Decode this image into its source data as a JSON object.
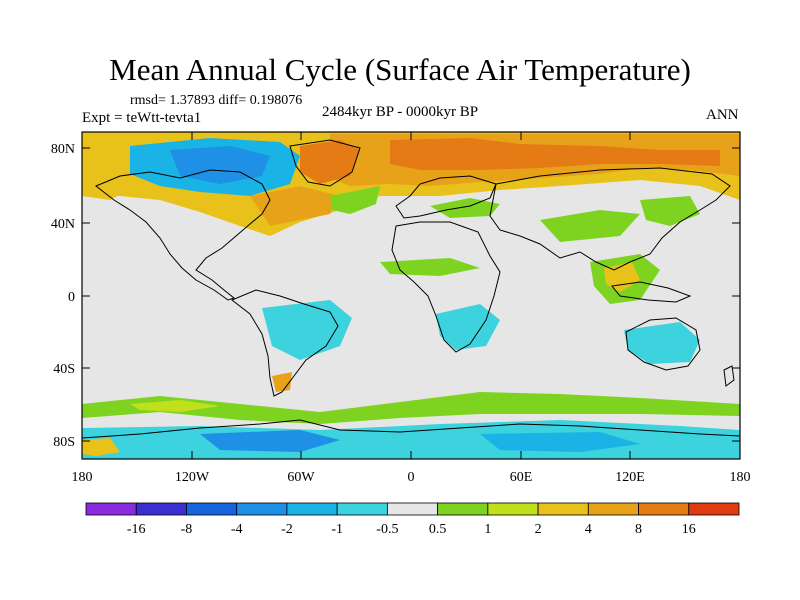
{
  "title": "Mean Annual Cycle (Surface Air Temperature)",
  "stats": "rmsd= 1.37893 diff= 0.198076",
  "experiment": "Expt = teWtt-tevta1",
  "period": "2484kyr BP - 0000kyr BP",
  "season": "ANN",
  "lat_ticks": [
    "80N",
    "40N",
    "0",
    "40S",
    "80S"
  ],
  "lon_ticks": [
    "180",
    "120W",
    "60W",
    "0",
    "60E",
    "120E",
    "180"
  ],
  "colorbar": {
    "labels": [
      "-16",
      "-8",
      "-4",
      "-2",
      "-1",
      "-0.5",
      "0.5",
      "1",
      "2",
      "4",
      "8",
      "16"
    ],
    "colors": [
      "#8a2be2",
      "#3a2fd0",
      "#1565e0",
      "#1e90e6",
      "#19b3e6",
      "#3cd2de",
      "#e6e6e6",
      "#7ed321",
      "#bfe01a",
      "#e8c21a",
      "#e8a21a",
      "#e57b15",
      "#e03a10"
    ]
  }
}
